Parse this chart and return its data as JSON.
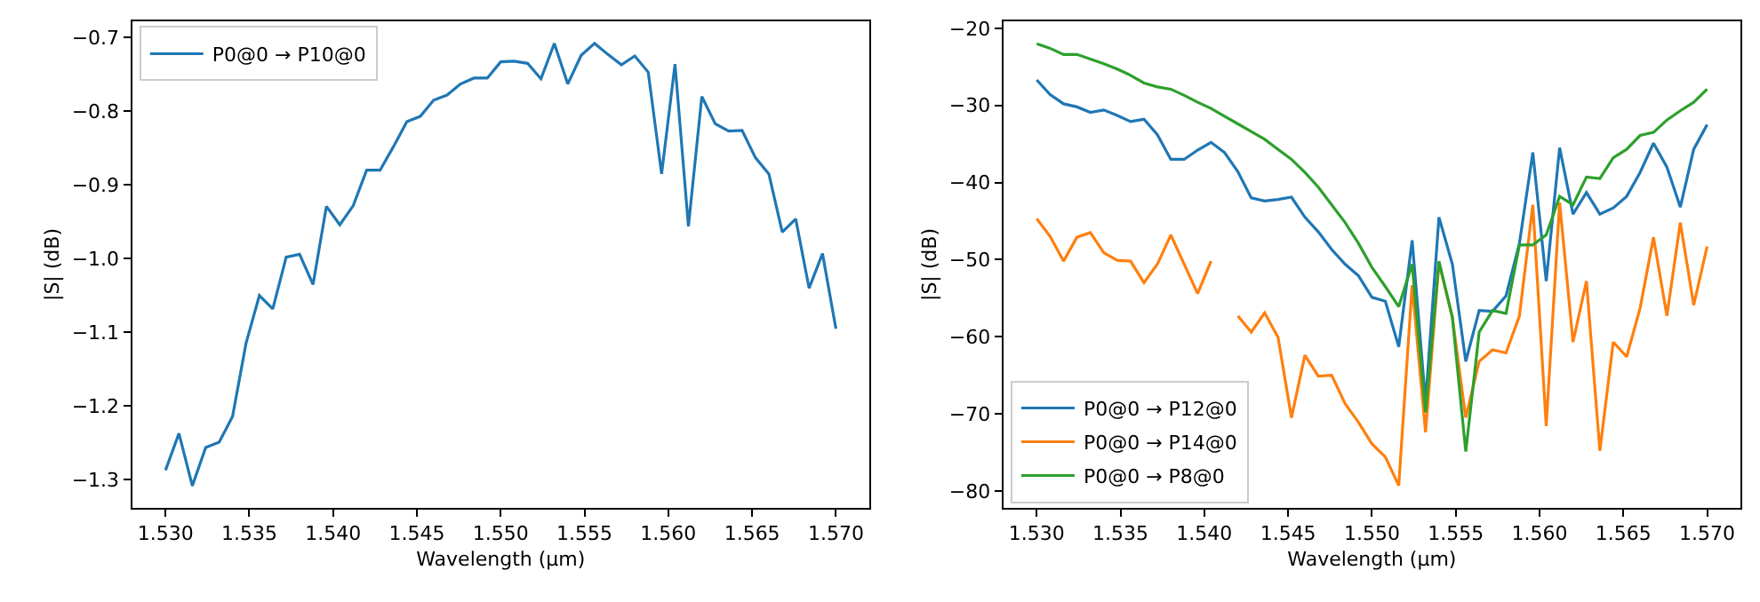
{
  "chart_data": [
    {
      "type": "line",
      "xlabel": "Wavelength (µm)",
      "ylabel": "|S| (dB)",
      "legend": "top left",
      "xlim": [
        1.528,
        1.572
      ],
      "ylim": [
        -1.338,
        -0.678
      ],
      "xticks": [
        {
          "value": 1.53,
          "label": "1.530"
        },
        {
          "value": 1.535,
          "label": "1.535"
        },
        {
          "value": 1.54,
          "label": "1.540"
        },
        {
          "value": 1.545,
          "label": "1.545"
        },
        {
          "value": 1.55,
          "label": "1.550"
        },
        {
          "value": 1.555,
          "label": "1.555"
        },
        {
          "value": 1.56,
          "label": "1.560"
        },
        {
          "value": 1.565,
          "label": "1.565"
        },
        {
          "value": 1.57,
          "label": "1.570"
        }
      ],
      "yticks": [
        {
          "value": -1.3,
          "label": "−1.3"
        },
        {
          "value": -1.2,
          "label": "−1.2"
        },
        {
          "value": -1.1,
          "label": "−1.1"
        },
        {
          "value": -1.0,
          "label": "−1.0"
        },
        {
          "value": -0.9,
          "label": "−0.9"
        },
        {
          "value": -0.8,
          "label": "−0.8"
        },
        {
          "value": -0.7,
          "label": "−0.7"
        }
      ],
      "x": [
        1.53,
        1.5308,
        1.5316,
        1.5324,
        1.5332,
        1.534,
        1.5348,
        1.5356,
        1.5364,
        1.5372,
        1.538,
        1.5388,
        1.5396,
        1.5404,
        1.5412,
        1.542,
        1.5428,
        1.5436,
        1.5444,
        1.5452,
        1.546,
        1.5468,
        1.5476,
        1.5484,
        1.5492,
        1.55,
        1.5508,
        1.5516,
        1.5524,
        1.5532,
        1.554,
        1.5548,
        1.5556,
        1.5564,
        1.5572,
        1.558,
        1.5588,
        1.5596,
        1.5604,
        1.5612,
        1.562,
        1.5628,
        1.5636,
        1.5644,
        1.5652,
        1.566,
        1.5668,
        1.5676,
        1.5684,
        1.5692,
        1.57
      ],
      "series": [
        {
          "name": "P0@0 → P10@0",
          "color": "#1f77b4",
          "values": [
            -1.287,
            -1.237,
            -1.308,
            -1.256,
            -1.249,
            -1.214,
            -1.115,
            -1.05,
            -1.068,
            -0.998,
            -0.994,
            -1.035,
            -0.929,
            -0.954,
            -0.928,
            -0.88,
            -0.88,
            -0.848,
            -0.814,
            -0.807,
            -0.785,
            -0.778,
            -0.763,
            -0.755,
            -0.755,
            -0.733,
            -0.732,
            -0.735,
            -0.756,
            -0.708,
            -0.763,
            -0.724,
            -0.708,
            -0.723,
            -0.737,
            -0.725,
            -0.747,
            -0.885,
            -0.736,
            -0.956,
            -0.78,
            -0.817,
            -0.827,
            -0.826,
            -0.863,
            -0.885,
            -0.964,
            -0.946,
            -1.04,
            -0.993,
            -1.095
          ]
        }
      ]
    },
    {
      "type": "line",
      "xlabel": "Wavelength (µm)",
      "ylabel": "|S| (dB)",
      "legend": "bottom left",
      "xlim": [
        1.528,
        1.572
      ],
      "ylim": [
        -82.2,
        -19.1
      ],
      "xticks": [
        {
          "value": 1.53,
          "label": "1.530"
        },
        {
          "value": 1.535,
          "label": "1.535"
        },
        {
          "value": 1.54,
          "label": "1.540"
        },
        {
          "value": 1.545,
          "label": "1.545"
        },
        {
          "value": 1.55,
          "label": "1.550"
        },
        {
          "value": 1.555,
          "label": "1.555"
        },
        {
          "value": 1.56,
          "label": "1.560"
        },
        {
          "value": 1.565,
          "label": "1.565"
        },
        {
          "value": 1.57,
          "label": "1.570"
        }
      ],
      "yticks": [
        {
          "value": -80,
          "label": "−80"
        },
        {
          "value": -70,
          "label": "−70"
        },
        {
          "value": -60,
          "label": "−60"
        },
        {
          "value": -50,
          "label": "−50"
        },
        {
          "value": -40,
          "label": "−40"
        },
        {
          "value": -30,
          "label": "−30"
        },
        {
          "value": -20,
          "label": "−20"
        }
      ],
      "x": [
        1.53,
        1.5308,
        1.5316,
        1.5324,
        1.5332,
        1.534,
        1.5348,
        1.5356,
        1.5364,
        1.5372,
        1.538,
        1.5388,
        1.5396,
        1.5404,
        1.5412,
        1.542,
        1.5428,
        1.5436,
        1.5444,
        1.5452,
        1.546,
        1.5468,
        1.5476,
        1.5484,
        1.5492,
        1.55,
        1.5508,
        1.5516,
        1.5524,
        1.5532,
        1.554,
        1.5548,
        1.5556,
        1.5564,
        1.5572,
        1.558,
        1.5588,
        1.5596,
        1.5604,
        1.5612,
        1.562,
        1.5628,
        1.5636,
        1.5644,
        1.5652,
        1.566,
        1.5668,
        1.5676,
        1.5684,
        1.5692,
        1.57
      ],
      "series": [
        {
          "name": "P0@0 → P12@0",
          "color": "#1f77b4",
          "values": [
            -26.7,
            -28.6,
            -29.8,
            -30.2,
            -30.9,
            -30.6,
            -31.3,
            -32.1,
            -31.8,
            -33.8,
            -37.0,
            -37.0,
            -35.8,
            -34.8,
            -36.1,
            -38.6,
            -42.0,
            -42.4,
            -42.2,
            -41.9,
            -44.5,
            -46.4,
            -48.7,
            -50.6,
            -52.1,
            -54.9,
            -55.4,
            -61.3,
            -47.5,
            -68.5,
            -44.5,
            -50.6,
            -63.2,
            -56.6,
            -56.7,
            -54.7,
            -47.9,
            -36.1,
            -52.8,
            -35.5,
            -44.1,
            -41.3,
            -44.1,
            -43.3,
            -41.8,
            -38.7,
            -34.9,
            -38.0,
            -43.2,
            -35.7,
            -32.5
          ]
        },
        {
          "name": "P0@0 → P14@0",
          "color": "#ff7f0e",
          "values": [
            -44.7,
            -47.0,
            -50.2,
            -47.1,
            -46.5,
            -49.1,
            -50.1,
            -50.2,
            -53.0,
            -50.6,
            -46.8,
            -50.6,
            -54.4,
            -50.2,
            null,
            -57.3,
            -59.4,
            -56.9,
            -60.1,
            -70.5,
            -62.4,
            -65.1,
            -65.0,
            -68.7,
            -71.1,
            -73.9,
            -75.6,
            -79.3,
            -53.3,
            -72.4,
            -50.4,
            -57.5,
            -70.5,
            -63.2,
            -61.7,
            -62.1,
            -57.3,
            -42.9,
            -71.6,
            -42.6,
            -60.7,
            -52.8,
            -74.8,
            -60.7,
            -62.6,
            -56.3,
            -47.1,
            -57.3,
            -45.2,
            -55.9,
            -48.3
          ]
        },
        {
          "name": "P0@0 → P8@0",
          "color": "#2ca02c",
          "values": [
            -22.0,
            -22.6,
            -23.4,
            -23.4,
            -24.0,
            -24.6,
            -25.3,
            -26.1,
            -27.1,
            -27.6,
            -27.9,
            -28.7,
            -29.6,
            -30.4,
            -31.4,
            -32.4,
            -33.4,
            -34.4,
            -35.7,
            -37.0,
            -38.7,
            -40.6,
            -42.9,
            -45.2,
            -47.9,
            -51.0,
            -53.5,
            -56.1,
            -50.6,
            -69.8,
            -50.2,
            -57.5,
            -74.9,
            -59.4,
            -56.6,
            -57.0,
            -48.1,
            -48.1,
            -46.8,
            -41.8,
            -42.9,
            -39.3,
            -39.5,
            -36.8,
            -35.7,
            -33.9,
            -33.5,
            -31.9,
            -30.7,
            -29.6,
            -27.9
          ]
        }
      ]
    }
  ]
}
